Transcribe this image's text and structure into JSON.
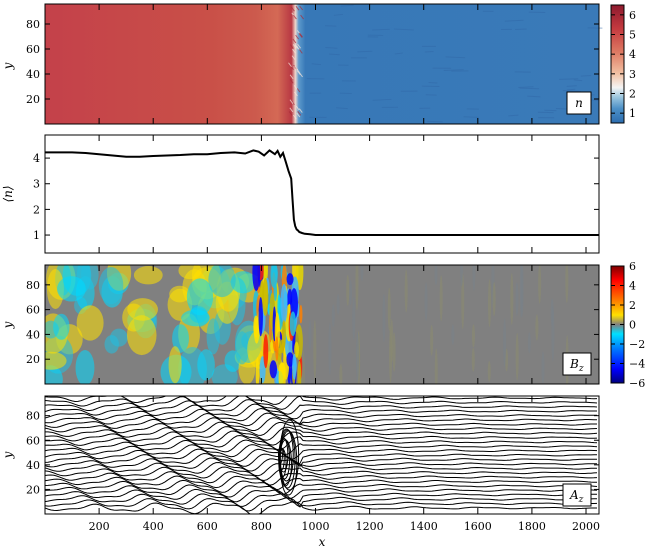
{
  "chart_data": [
    {
      "type": "heatmap",
      "panel_label": "n",
      "ylabel": "y",
      "xlim": [
        0,
        2048
      ],
      "ylim": [
        0,
        96
      ],
      "y_ticks": [
        20,
        40,
        60,
        80
      ],
      "colorbar": {
        "min": 0.5,
        "max": 6.5,
        "ticks": [
          1,
          2,
          3,
          4,
          5,
          6
        ],
        "colormap": "RdBu_r"
      },
      "description_values": {
        "upstream_level": 1.0,
        "downstream_level": 4.2,
        "shock_x": 935
      }
    },
    {
      "type": "line",
      "ylabel": "⟨n⟩",
      "xlim": [
        0,
        2048
      ],
      "ylim": [
        0.3,
        4.9
      ],
      "y_ticks": [
        1,
        2,
        3,
        4
      ],
      "series": [
        {
          "x": [
            0,
            50,
            100,
            150,
            200,
            250,
            300,
            350,
            400,
            450,
            500,
            550,
            600,
            650,
            700,
            740,
            770,
            790,
            810,
            830,
            850,
            860,
            870,
            880,
            890,
            900,
            910,
            915,
            920,
            925,
            930,
            935,
            940,
            950,
            960,
            980,
            1000,
            1100,
            1200,
            1300,
            1400,
            1500,
            1600,
            1700,
            1800,
            1900,
            2000,
            2048
          ],
          "y": [
            4.22,
            4.22,
            4.22,
            4.2,
            4.15,
            4.1,
            4.05,
            4.05,
            4.08,
            4.1,
            4.12,
            4.15,
            4.15,
            4.2,
            4.22,
            4.18,
            4.3,
            4.25,
            4.1,
            4.3,
            4.15,
            4.28,
            4.05,
            4.2,
            3.85,
            3.5,
            3.2,
            2.4,
            1.6,
            1.35,
            1.22,
            1.18,
            1.12,
            1.08,
            1.05,
            1.03,
            1.0,
            1.0,
            1.0,
            1.0,
            1.0,
            1.0,
            1.0,
            1.0,
            1.0,
            1.0,
            1.0,
            1.0
          ]
        }
      ]
    },
    {
      "type": "heatmap",
      "panel_label": "Bz",
      "ylabel": "y",
      "xlim": [
        0,
        2048
      ],
      "ylim": [
        0,
        96
      ],
      "y_ticks": [
        20,
        40,
        60,
        80
      ],
      "colorbar": {
        "min": -6,
        "max": 6,
        "ticks": [
          -6,
          -4,
          -2,
          0,
          2,
          4,
          6
        ],
        "colormap": "jet"
      }
    },
    {
      "type": "contour",
      "panel_label": "Az",
      "ylabel": "y",
      "xlabel": "x",
      "xlim": [
        0,
        2048
      ],
      "ylim": [
        0,
        96
      ],
      "y_ticks": [
        20,
        40,
        60,
        80
      ],
      "x_ticks": [
        200,
        400,
        600,
        800,
        1000,
        1200,
        1400,
        1600,
        1800,
        2000
      ],
      "num_contour_lines": 26
    }
  ],
  "labels": {
    "n_tag_main": "n",
    "bz_tag_main": "B",
    "bz_tag_sub": "z",
    "az_tag_main": "A",
    "az_tag_sub": "z",
    "y_axis": "y",
    "x_axis": "x",
    "n_mean_ylabel": "⟨n⟩"
  },
  "colors": {
    "n_low": "#2f6fb0",
    "n_high": "#c0303a",
    "bz_background": "#808080",
    "line": "#000000"
  }
}
